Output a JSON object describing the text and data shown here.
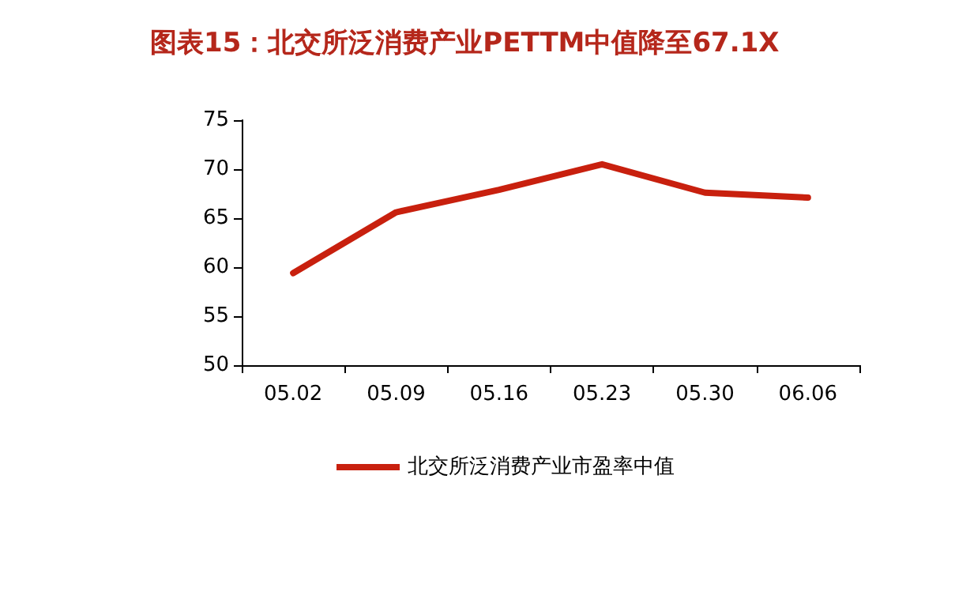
{
  "chart_data": {
    "type": "line",
    "title": "图表15：北交所泛消费产业PETTM中值降至67.1X",
    "categories": [
      "05.02",
      "05.09",
      "05.16",
      "05.23",
      "05.30",
      "06.06"
    ],
    "series": [
      {
        "name": "北交所泛消费产业市盈率中值",
        "color": "#c8200e",
        "values": [
          59.4,
          65.6,
          67.9,
          70.5,
          67.6,
          67.1
        ]
      }
    ],
    "ylim": [
      50,
      75
    ],
    "yticks": [
      50,
      55,
      60,
      65,
      70,
      75
    ],
    "grid": false,
    "legend": "bottom",
    "marker": "none",
    "line_style": "solid"
  }
}
